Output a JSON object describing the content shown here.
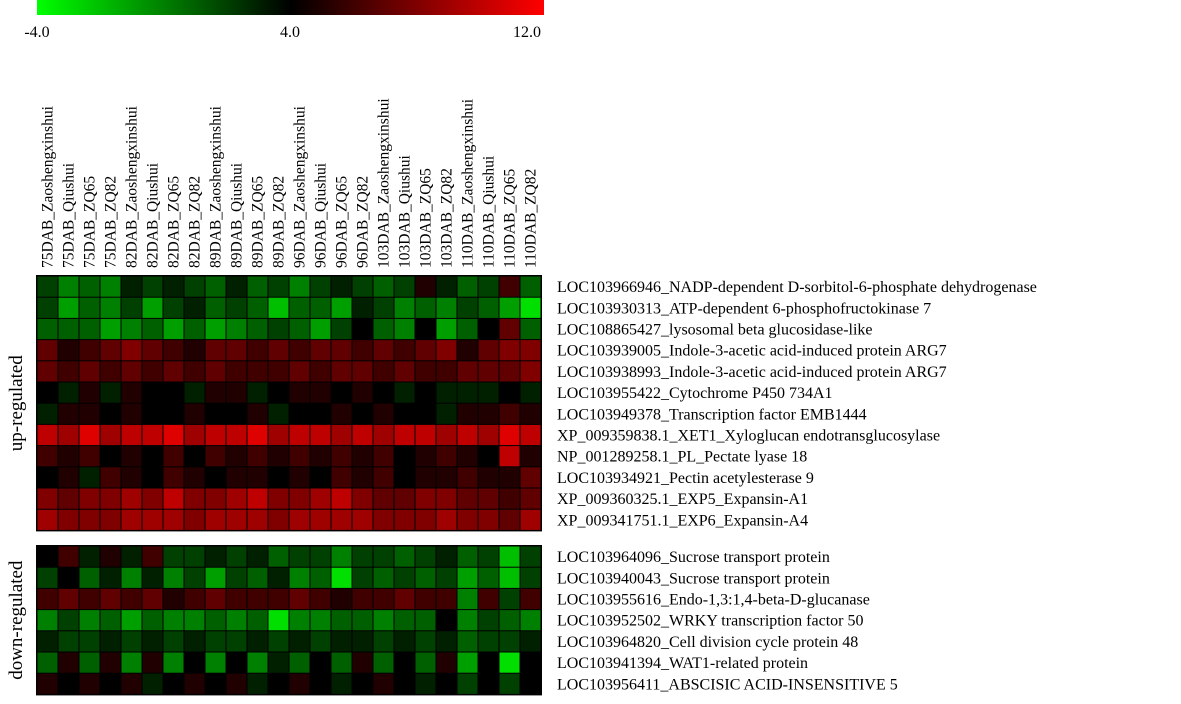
{
  "chart_data": {
    "type": "heatmap",
    "colorscale": {
      "min": -4.0,
      "mid": 4.0,
      "max": 12.0,
      "min_label": "-4.0",
      "mid_label": "4.0",
      "max_label": "12.0",
      "colors": [
        "#00ff00",
        "#000000",
        "#ff0000"
      ]
    },
    "columns": [
      "75DAB_Zaoshengxinshui",
      "75DAB_Qiushui",
      "75DAB_ZQ65",
      "75DAB_ZQ82",
      "82DAB_Zaoshengxinshui",
      "82DAB_Qiushui",
      "82DAB_ZQ65",
      "82DAB_ZQ82",
      "89DAB_Zaoshengxinshui",
      "89DAB_Qiushui",
      "89DAB_ZQ65",
      "89DAB_ZQ82",
      "96DAB_Zaoshengxinshui",
      "96DAB_Qiushui",
      "96DAB_ZQ65",
      "96DAB_ZQ82",
      "103DAB_Zaoshengxinshui",
      "103DAB_Qiushui",
      "103DAB_ZQ65",
      "103DAB_ZQ82",
      "110DAB_Zaoshengxinshui",
      "110DAB_Qiushui",
      "110DAB_ZQ65",
      "110DAB_ZQ82"
    ],
    "groups": [
      {
        "label": "up-regulated",
        "rows": [
          {
            "gene": "LOC103966946_NADP-dependent D-sorbitol-6-phosphate dehydrogenase",
            "values": [
              2,
              0,
              1,
              0,
              3,
              2,
              3,
              2,
              1,
              3,
              1,
              2,
              0,
              2,
              3,
              2,
              1,
              2,
              5,
              3,
              1,
              2,
              6,
              1
            ]
          },
          {
            "gene": "LOC103930313_ATP-dependent 6-phosphofructokinase 7",
            "values": [
              2,
              -1,
              1,
              0,
              2,
              -1,
              2,
              3,
              1,
              2,
              1,
              -2,
              1,
              1,
              -1,
              3,
              2,
              0,
              1,
              0,
              2,
              1,
              -1,
              -3
            ]
          },
          {
            "gene": "LOC108865427_lysosomal beta glucosidase-like",
            "values": [
              1,
              1,
              1,
              -1,
              0,
              1,
              -1,
              1,
              -1,
              0,
              1,
              2,
              1,
              -1,
              2,
              4,
              1,
              0,
              4,
              -1,
              1,
              4,
              7,
              1
            ]
          },
          {
            "gene": "LOC103939005_Indole-3-acetic acid-induced protein ARG7",
            "values": [
              7,
              5,
              6,
              7,
              8,
              7,
              6,
              5,
              7,
              7,
              6,
              7,
              6,
              7,
              7,
              6,
              7,
              6,
              7,
              8,
              5,
              7,
              8,
              8
            ]
          },
          {
            "gene": "LOC103938993_Indole-3-acetic acid-induced protein ARG7",
            "values": [
              7,
              6,
              7,
              6,
              7,
              6,
              7,
              6,
              7,
              6,
              6,
              6,
              7,
              6,
              7,
              7,
              6,
              7,
              6,
              6,
              7,
              7,
              7,
              8
            ]
          },
          {
            "gene": "LOC103955422_Cytochrome P450 734A1",
            "values": [
              4,
              3,
              5,
              3,
              5,
              4,
              4,
              3,
              5,
              5,
              3,
              4,
              5,
              5,
              4,
              5,
              4,
              3,
              4,
              3,
              3,
              3,
              4,
              3
            ]
          },
          {
            "gene": "LOC103949378_Transcription factor EMB1444",
            "values": [
              3,
              5,
              5,
              4,
              5,
              4,
              4,
              5,
              4,
              4,
              5,
              3,
              4,
              4,
              5,
              4,
              5,
              4,
              4,
              3,
              5,
              5,
              6,
              5
            ]
          },
          {
            "gene": "XP_009359838.1_XET1_Xyloglucan endotransglucosylase",
            "values": [
              10,
              9,
              11,
              9,
              10,
              10,
              11,
              9,
              10,
              10,
              11,
              9,
              10,
              10,
              9,
              10,
              9,
              10,
              10,
              9,
              10,
              9,
              11,
              10
            ]
          },
          {
            "gene": "NP_001289258.1_PL_Pectate lyase 18",
            "values": [
              6,
              5,
              6,
              4,
              5,
              4,
              6,
              4,
              6,
              5,
              6,
              5,
              6,
              5,
              6,
              5,
              6,
              4,
              5,
              6,
              5,
              4,
              10,
              5
            ]
          },
          {
            "gene": "LOC103934921_Pectin acetylesterase 9",
            "values": [
              4,
              5,
              3,
              6,
              5,
              4,
              6,
              5,
              4,
              5,
              5,
              4,
              5,
              4,
              6,
              5,
              6,
              4,
              5,
              5,
              6,
              5,
              5,
              7
            ]
          },
          {
            "gene": "XP_009360325.1_EXP5_Expansin-A1",
            "values": [
              8,
              7,
              8,
              8,
              9,
              8,
              10,
              8,
              8,
              9,
              10,
              8,
              8,
              9,
              10,
              8,
              7,
              7,
              8,
              8,
              7,
              7,
              6,
              7
            ]
          },
          {
            "gene": "XP_009341751.1_EXP6_Expansin-A4",
            "values": [
              9,
              8,
              8,
              8,
              9,
              9,
              9,
              8,
              9,
              9,
              9,
              8,
              9,
              9,
              9,
              9,
              8,
              8,
              8,
              9,
              8,
              8,
              7,
              9
            ]
          }
        ]
      },
      {
        "label": "down-regulated",
        "rows": [
          {
            "gene": "LOC103964096_Sucrose transport protein",
            "values": [
              4,
              6,
              3,
              5,
              3,
              6,
              2,
              2,
              3,
              2,
              3,
              1,
              2,
              2,
              0,
              2,
              2,
              1,
              2,
              3,
              1,
              2,
              -2,
              2
            ]
          },
          {
            "gene": "LOC103940043_Sucrose transport protein",
            "values": [
              2,
              4,
              1,
              3,
              0,
              3,
              0,
              2,
              -1,
              2,
              1,
              3,
              0,
              1,
              -3,
              2,
              1,
              2,
              1,
              2,
              -1,
              1,
              -2,
              2
            ]
          },
          {
            "gene": "LOC103955616_Endo-1,3:1,4-beta-D-glucanase",
            "values": [
              6,
              7,
              6,
              7,
              6,
              7,
              5,
              6,
              7,
              6,
              6,
              6,
              7,
              6,
              5,
              6,
              6,
              7,
              6,
              6,
              0,
              6,
              2,
              6
            ]
          },
          {
            "gene": "LOC103952502_WRKY transcription factor 50",
            "values": [
              0,
              2,
              0,
              1,
              -1,
              1,
              0,
              0,
              1,
              0,
              1,
              -3,
              0,
              0,
              1,
              1,
              0,
              1,
              1,
              4,
              0,
              2,
              1,
              0
            ]
          },
          {
            "gene": "LOC103964820_Cell division cycle protein 48",
            "values": [
              3,
              2,
              2,
              3,
              2,
              3,
              2,
              3,
              2,
              2,
              3,
              2,
              3,
              2,
              3,
              3,
              2,
              3,
              2,
              3,
              1,
              2,
              2,
              3
            ]
          },
          {
            "gene": "LOC103941394_WAT1-related protein",
            "values": [
              1,
              5,
              1,
              5,
              0,
              5,
              0,
              4,
              0,
              4,
              0,
              3,
              1,
              4,
              1,
              5,
              1,
              4,
              1,
              5,
              -1,
              4,
              -3,
              4
            ]
          },
          {
            "gene": "LOC103956411_ABSCISIC ACID-INSENSITIVE 5",
            "values": [
              5,
              4,
              5,
              4,
              5,
              3,
              4,
              5,
              4,
              5,
              3,
              4,
              5,
              4,
              3,
              4,
              5,
              4,
              3,
              4,
              2,
              4,
              2,
              4
            ]
          }
        ]
      }
    ]
  }
}
